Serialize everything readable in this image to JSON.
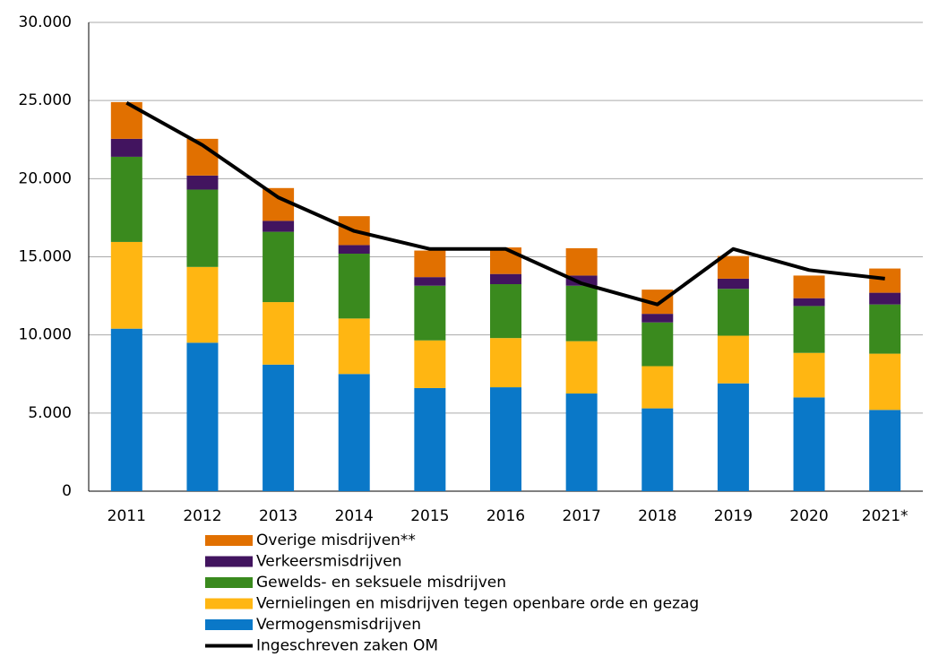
{
  "chart_data": {
    "type": "stacked-bar-line",
    "categories": [
      "2011",
      "2012",
      "2013",
      "2014",
      "2015",
      "2016",
      "2017",
      "2018",
      "2019",
      "2020",
      "2021*"
    ],
    "series": [
      {
        "name": "Vermogensmisdrijven",
        "color": "#0a78c8",
        "values": [
          10400,
          9500,
          8100,
          7500,
          6600,
          6650,
          6250,
          5300,
          6900,
          6000,
          5200
        ]
      },
      {
        "name": "Vernielingen en misdrijven tegen openbare orde en gezag",
        "color": "#ffb612",
        "values": [
          5550,
          4850,
          4000,
          3550,
          3050,
          3150,
          3350,
          2700,
          3050,
          2850,
          3600
        ]
      },
      {
        "name": "Gewelds- en seksuele misdrijven",
        "color": "#3a8a1e",
        "values": [
          5450,
          4950,
          4500,
          4150,
          3500,
          3450,
          3550,
          2800,
          3000,
          3000,
          3150
        ]
      },
      {
        "name": "Verkeersmisdrijven",
        "color": "#42145f",
        "values": [
          1150,
          900,
          700,
          550,
          550,
          650,
          650,
          550,
          650,
          500,
          750
        ]
      },
      {
        "name": "Overige misdrijven**",
        "color": "#e17000",
        "values": [
          2350,
          2350,
          2100,
          1850,
          1700,
          1700,
          1750,
          1550,
          1450,
          1450,
          1550
        ]
      },
      {
        "name": "Ingeschreven zaken OM",
        "color": "#000000",
        "type": "line",
        "values": [
          24850,
          22150,
          18800,
          16650,
          15500,
          15500,
          13300,
          11950,
          15500,
          14150,
          13600
        ]
      }
    ],
    "ylim": [
      0,
      30000
    ],
    "yticks": [
      0,
      {
        "value": 5000,
        "label": "5.000"
      },
      {
        "value": 10000,
        "label": "10.000"
      },
      {
        "value": 15000,
        "label": "15.000"
      },
      {
        "value": 20000,
        "label": "20.000"
      },
      {
        "value": 25000,
        "label": "25.000"
      },
      {
        "value": 30000,
        "label": "30.000"
      }
    ],
    "grid": true,
    "legend": "bottom"
  }
}
